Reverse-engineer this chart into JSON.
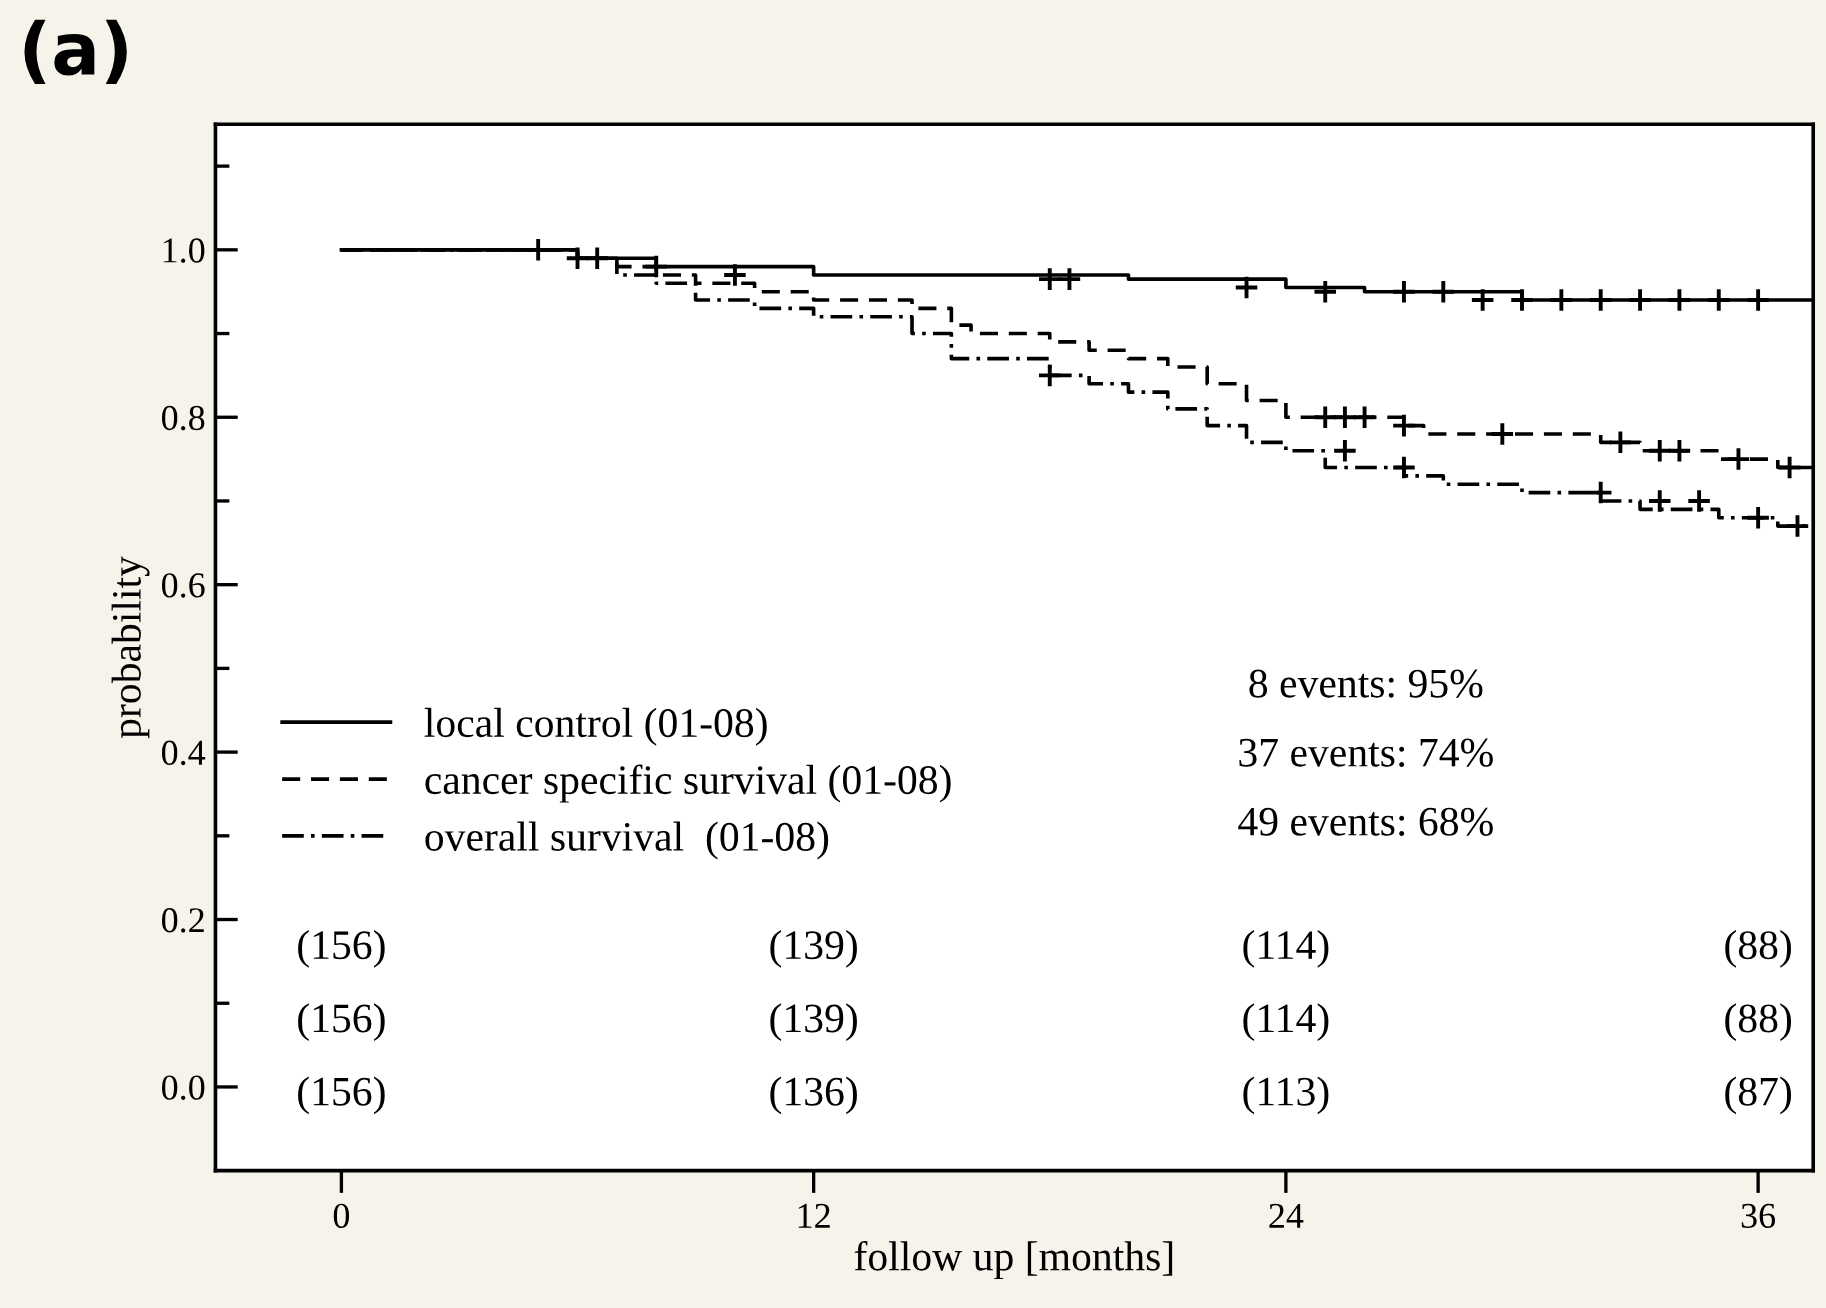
{
  "chart_data": {
    "type": "step",
    "xlabel": "follow up [months]",
    "ylabel": "probability",
    "xlim": [
      -3.2,
      37.4
    ],
    "ylim": [
      -0.1,
      1.15
    ],
    "xticks": [
      0,
      12,
      24,
      36
    ],
    "yticks": [
      {
        "value": 0.0,
        "label": "0.0"
      },
      {
        "value": 0.1,
        "label": null
      },
      {
        "value": 0.2,
        "label": "0.2"
      },
      {
        "value": 0.3,
        "label": null
      },
      {
        "value": 0.4,
        "label": "0.4"
      },
      {
        "value": 0.5,
        "label": null
      },
      {
        "value": 0.6,
        "label": "0.6"
      },
      {
        "value": 0.7,
        "label": null
      },
      {
        "value": 0.8,
        "label": "0.8"
      },
      {
        "value": 0.9,
        "label": null
      },
      {
        "value": 1.0,
        "label": "1.0"
      },
      {
        "value": 1.1,
        "label": null
      }
    ],
    "grid": false,
    "legend": "left",
    "marker": "none",
    "series": [
      {
        "name": "local control (01-08)",
        "color": "#000000",
        "line_style": "solid",
        "x": [
          0,
          6,
          8,
          12,
          20,
          24,
          26,
          30,
          37.4
        ],
        "values": [
          1.0,
          0.99,
          0.98,
          0.97,
          0.965,
          0.955,
          0.95,
          0.94,
          0.94
        ]
      },
      {
        "name": "cancer specific survival (01-08)",
        "color": "#000000",
        "line_style": "dashed",
        "x": [
          0,
          6,
          7,
          8,
          9,
          10.5,
          12,
          14.5,
          15.5,
          16,
          18,
          19,
          20,
          21,
          22,
          23,
          24,
          27,
          27.5,
          32,
          33,
          35,
          36.5,
          37.4
        ],
        "values": [
          1.0,
          0.99,
          0.98,
          0.97,
          0.96,
          0.95,
          0.94,
          0.93,
          0.91,
          0.9,
          0.89,
          0.88,
          0.87,
          0.86,
          0.84,
          0.82,
          0.8,
          0.79,
          0.78,
          0.77,
          0.76,
          0.75,
          0.74,
          0.74
        ]
      },
      {
        "name": "overall survival  (01-08)",
        "color": "#000000",
        "line_style": "dashdot",
        "x": [
          0,
          6,
          7,
          8,
          9,
          10.5,
          12,
          14.5,
          15.5,
          18,
          19,
          20,
          21,
          22,
          23,
          24,
          25,
          27,
          28,
          30,
          32,
          33,
          35,
          36.5,
          37.4
        ],
        "values": [
          1.0,
          0.99,
          0.97,
          0.96,
          0.94,
          0.93,
          0.92,
          0.9,
          0.87,
          0.85,
          0.84,
          0.83,
          0.81,
          0.79,
          0.77,
          0.76,
          0.74,
          0.73,
          0.72,
          0.71,
          0.7,
          0.69,
          0.68,
          0.67,
          0.67
        ]
      },
      {
        "type": "scatter",
        "color": "#000000",
        "marker": "cross",
        "x": [
          5,
          6,
          6.5,
          8,
          10,
          18,
          18.5,
          23,
          25,
          27,
          28,
          29,
          30,
          31,
          32,
          33,
          34,
          35,
          36
        ],
        "values": [
          1.0,
          0.99,
          0.99,
          0.98,
          0.97,
          0.965,
          0.965,
          0.955,
          0.95,
          0.95,
          0.95,
          0.94,
          0.94,
          0.94,
          0.94,
          0.94,
          0.94,
          0.94,
          0.94
        ]
      },
      {
        "type": "scatter",
        "color": "#000000",
        "marker": "cross",
        "x": [
          25,
          25.5,
          26,
          27,
          29.5,
          32.5,
          33.5,
          34,
          35.5,
          36.8
        ],
        "values": [
          0.8,
          0.8,
          0.8,
          0.79,
          0.78,
          0.77,
          0.76,
          0.76,
          0.75,
          0.74
        ]
      },
      {
        "type": "scatter",
        "color": "#000000",
        "marker": "cross",
        "x": [
          18,
          25.5,
          27,
          32,
          33.5,
          34.5,
          36,
          37
        ],
        "values": [
          0.85,
          0.76,
          0.74,
          0.71,
          0.7,
          0.7,
          0.68,
          0.67
        ]
      }
    ],
    "annotations": [
      "(a)",
      "8 events: 95%",
      "37 events: 74%",
      "49 events: 68%",
      "(156)",
      "(139)",
      "(114)",
      "(88)",
      "(156)",
      "(139)",
      "(114)",
      "(88)",
      "(156)",
      "(136)",
      "(113)",
      "(87)"
    ]
  }
}
